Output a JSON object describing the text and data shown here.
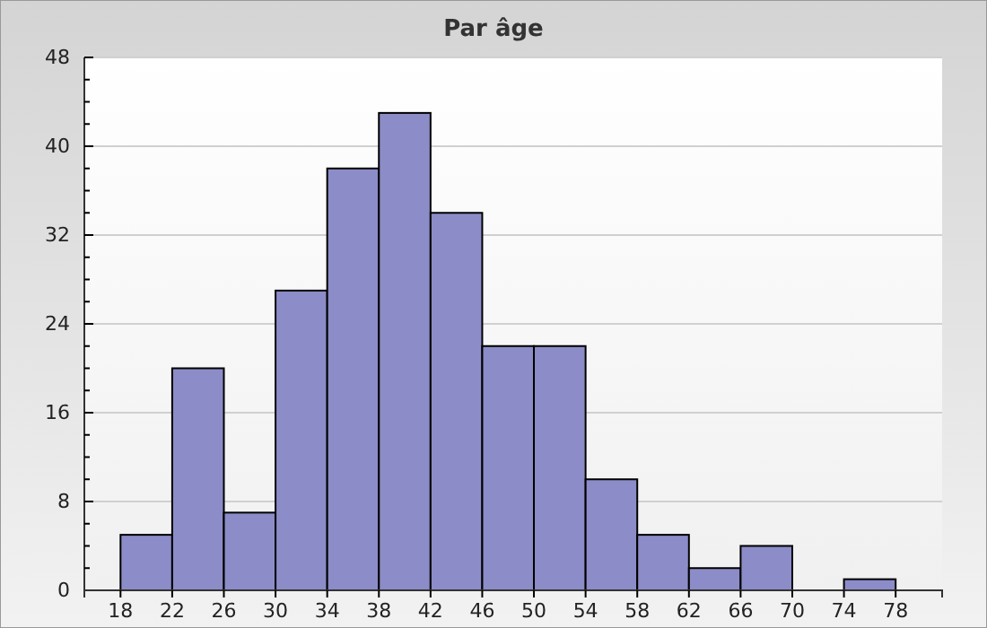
{
  "chart_data": {
    "type": "histogram",
    "title": "Par âge",
    "color": "#8c8cc8",
    "bins": [
      18,
      22,
      26,
      30,
      34,
      38,
      42,
      46,
      50,
      54,
      58,
      62,
      66,
      70,
      74,
      78
    ],
    "values": [
      5,
      20,
      7,
      27,
      38,
      43,
      34,
      22,
      22,
      10,
      5,
      2,
      4,
      0,
      1
    ],
    "xlim": [
      15.2,
      81.6
    ],
    "xticks": [
      18,
      22,
      26,
      30,
      34,
      38,
      42,
      46,
      50,
      54,
      58,
      62,
      66,
      70,
      74,
      78
    ],
    "ylim": [
      0,
      48
    ],
    "yticks": [
      0,
      {
        "value": 2,
        "label": null
      },
      {
        "value": 4,
        "label": null
      },
      {
        "value": 6,
        "label": null
      },
      8,
      {
        "value": 10,
        "label": null
      },
      {
        "value": 12,
        "label": null
      },
      {
        "value": 14,
        "label": null
      },
      16,
      {
        "value": 18,
        "label": null
      },
      {
        "value": 20,
        "label": null
      },
      {
        "value": 22,
        "label": null
      },
      24,
      {
        "value": 26,
        "label": null
      },
      {
        "value": 28,
        "label": null
      },
      {
        "value": 30,
        "label": null
      },
      32,
      {
        "value": 34,
        "label": null
      },
      {
        "value": 36,
        "label": null
      },
      {
        "value": 38,
        "label": null
      },
      40,
      {
        "value": 42,
        "label": null
      },
      {
        "value": 44,
        "label": null
      },
      {
        "value": 46,
        "label": null
      },
      48
    ],
    "grid": "y"
  }
}
